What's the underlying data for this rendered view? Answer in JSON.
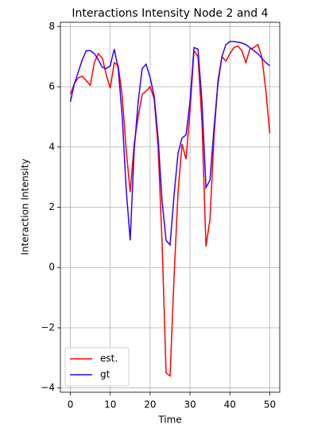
{
  "chart_data": {
    "type": "line",
    "title": "Interactions Intensity Node 2 and 4",
    "xlabel": "Time",
    "ylabel": "Interaction Intensity",
    "x": [
      0,
      1,
      2,
      3,
      4,
      5,
      6,
      7,
      8,
      9,
      10,
      11,
      12,
      13,
      14,
      15,
      16,
      17,
      18,
      19,
      20,
      21,
      22,
      23,
      24,
      25,
      26,
      27,
      28,
      29,
      30,
      31,
      32,
      33,
      34,
      35,
      36,
      37,
      38,
      39,
      40,
      41,
      42,
      43,
      44,
      45,
      46,
      47,
      48,
      49,
      50
    ],
    "series": [
      {
        "name": "est.",
        "color": "#ff0000",
        "values": [
          5.75,
          6.1,
          6.3,
          6.35,
          6.2,
          6.05,
          6.8,
          7.1,
          6.95,
          6.4,
          5.95,
          6.8,
          6.7,
          5.7,
          3.9,
          2.5,
          4.1,
          5.0,
          5.75,
          5.85,
          6.0,
          5.6,
          4.0,
          0.8,
          -3.5,
          -3.6,
          -0.3,
          2.5,
          4.1,
          3.6,
          5.2,
          7.2,
          7.0,
          4.8,
          0.7,
          1.6,
          4.3,
          6.2,
          7.0,
          6.85,
          7.1,
          7.3,
          7.35,
          7.2,
          6.8,
          7.25,
          7.3,
          7.4,
          7.0,
          5.9,
          4.45
        ]
      },
      {
        "name": "gt",
        "color": "#3300ff",
        "values": [
          5.5,
          6.1,
          6.5,
          6.9,
          7.2,
          7.2,
          7.1,
          6.9,
          6.65,
          6.6,
          6.7,
          7.25,
          6.6,
          5.0,
          2.6,
          0.9,
          3.9,
          5.5,
          6.6,
          6.75,
          6.3,
          5.7,
          4.3,
          2.2,
          0.9,
          0.75,
          2.4,
          3.8,
          4.3,
          4.4,
          5.5,
          7.3,
          7.25,
          5.5,
          2.65,
          2.9,
          4.6,
          6.1,
          7.0,
          7.4,
          7.5,
          7.5,
          7.48,
          7.45,
          7.4,
          7.3,
          7.2,
          7.1,
          6.95,
          6.8,
          6.7
        ]
      }
    ],
    "xlim": [
      -2.5,
      52.5
    ],
    "xticks": [
      0,
      10,
      20,
      30,
      40,
      50
    ],
    "ylim": [
      -4.14,
      8.14
    ],
    "yticks": [
      {
        "value": -4,
        "label": "−4"
      },
      {
        "value": -2,
        "label": "−2"
      },
      0,
      2,
      4,
      6,
      8
    ],
    "grid": true,
    "legend": "lower left"
  }
}
